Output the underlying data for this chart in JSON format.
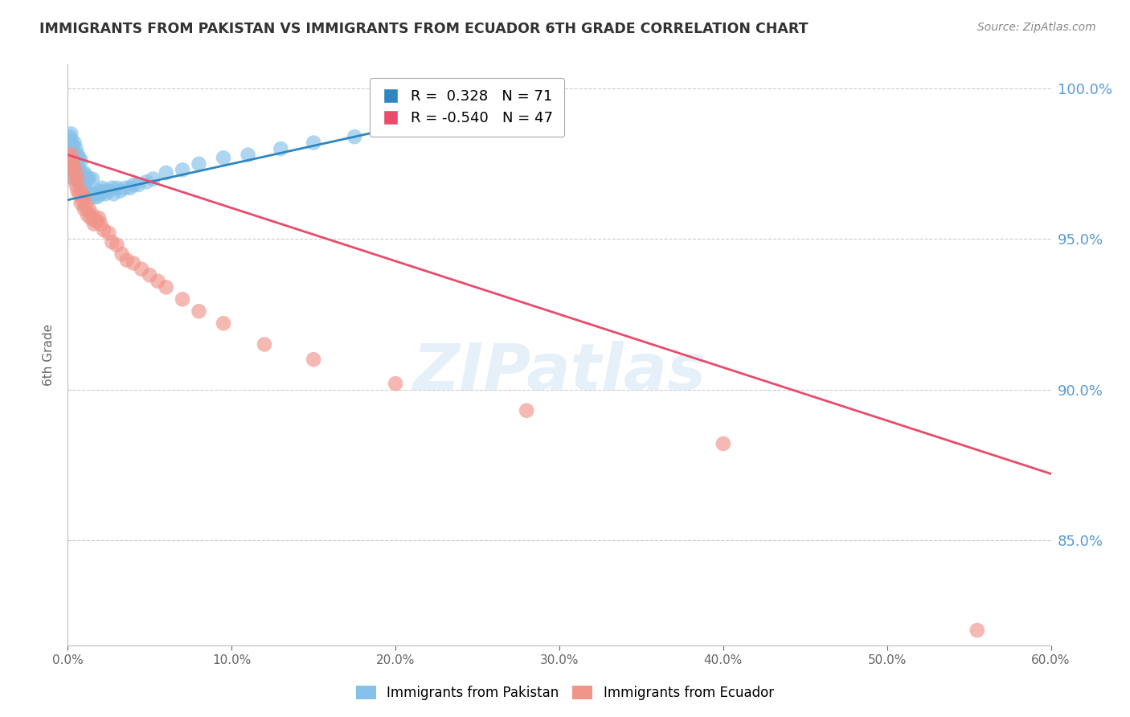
{
  "title": "IMMIGRANTS FROM PAKISTAN VS IMMIGRANTS FROM ECUADOR 6TH GRADE CORRELATION CHART",
  "source": "Source: ZipAtlas.com",
  "ylabel": "6th Grade",
  "right_yticks": [
    85.0,
    90.0,
    95.0,
    100.0
  ],
  "xlim": [
    0.0,
    0.6
  ],
  "ylim": [
    0.815,
    1.008
  ],
  "pakistan_color": "#85C1E9",
  "ecuador_color": "#F1948A",
  "pakistan_line_color": "#2E86C1",
  "ecuador_line_color": "#E74C6B",
  "legend_pakistan_label": "Immigrants from Pakistan",
  "legend_ecuador_label": "Immigrants from Ecuador",
  "R_pakistan": 0.328,
  "N_pakistan": 71,
  "R_ecuador": -0.54,
  "N_ecuador": 47,
  "pakistan_x": [
    0.001,
    0.001,
    0.001,
    0.001,
    0.001,
    0.002,
    0.002,
    0.002,
    0.002,
    0.002,
    0.003,
    0.003,
    0.003,
    0.003,
    0.004,
    0.004,
    0.004,
    0.004,
    0.005,
    0.005,
    0.005,
    0.006,
    0.006,
    0.006,
    0.007,
    0.007,
    0.007,
    0.008,
    0.008,
    0.008,
    0.009,
    0.009,
    0.01,
    0.01,
    0.011,
    0.011,
    0.012,
    0.012,
    0.013,
    0.013,
    0.014,
    0.015,
    0.015,
    0.016,
    0.017,
    0.018,
    0.019,
    0.02,
    0.021,
    0.022,
    0.023,
    0.025,
    0.027,
    0.028,
    0.03,
    0.032,
    0.035,
    0.038,
    0.04,
    0.043,
    0.048,
    0.052,
    0.06,
    0.07,
    0.08,
    0.095,
    0.11,
    0.13,
    0.15,
    0.175,
    0.25
  ],
  "pakistan_y": [
    0.976,
    0.978,
    0.98,
    0.982,
    0.984,
    0.974,
    0.977,
    0.98,
    0.983,
    0.985,
    0.972,
    0.975,
    0.978,
    0.981,
    0.97,
    0.974,
    0.978,
    0.982,
    0.972,
    0.976,
    0.98,
    0.97,
    0.974,
    0.978,
    0.969,
    0.973,
    0.977,
    0.968,
    0.972,
    0.976,
    0.967,
    0.971,
    0.967,
    0.972,
    0.966,
    0.971,
    0.965,
    0.97,
    0.965,
    0.97,
    0.965,
    0.965,
    0.97,
    0.964,
    0.965,
    0.964,
    0.966,
    0.965,
    0.967,
    0.966,
    0.965,
    0.966,
    0.967,
    0.965,
    0.967,
    0.966,
    0.967,
    0.967,
    0.968,
    0.968,
    0.969,
    0.97,
    0.972,
    0.973,
    0.975,
    0.977,
    0.978,
    0.98,
    0.982,
    0.984,
    0.987
  ],
  "ecuador_x": [
    0.001,
    0.002,
    0.002,
    0.003,
    0.003,
    0.004,
    0.004,
    0.005,
    0.005,
    0.006,
    0.006,
    0.007,
    0.008,
    0.008,
    0.009,
    0.01,
    0.01,
    0.011,
    0.012,
    0.013,
    0.014,
    0.015,
    0.016,
    0.017,
    0.018,
    0.019,
    0.02,
    0.022,
    0.025,
    0.027,
    0.03,
    0.033,
    0.036,
    0.04,
    0.045,
    0.05,
    0.055,
    0.06,
    0.07,
    0.08,
    0.095,
    0.12,
    0.15,
    0.2,
    0.28,
    0.4,
    0.555
  ],
  "ecuador_y": [
    0.978,
    0.975,
    0.978,
    0.973,
    0.976,
    0.97,
    0.974,
    0.968,
    0.972,
    0.966,
    0.97,
    0.965,
    0.962,
    0.966,
    0.963,
    0.96,
    0.964,
    0.961,
    0.958,
    0.96,
    0.957,
    0.958,
    0.955,
    0.956,
    0.956,
    0.957,
    0.955,
    0.953,
    0.952,
    0.949,
    0.948,
    0.945,
    0.943,
    0.942,
    0.94,
    0.938,
    0.936,
    0.934,
    0.93,
    0.926,
    0.922,
    0.915,
    0.91,
    0.902,
    0.893,
    0.882,
    0.82
  ],
  "pk_line_x0": 0.0,
  "pk_line_x1": 0.25,
  "pk_line_y0": 0.963,
  "pk_line_y1": 0.993,
  "ec_line_x0": 0.0,
  "ec_line_x1": 0.6,
  "ec_line_y0": 0.978,
  "ec_line_y1": 0.872,
  "watermark_text": "ZIPatlas",
  "background_color": "#FFFFFF",
  "grid_color": "#CCCCCC",
  "right_axis_color": "#5B9BD5",
  "title_color": "#333333",
  "ylabel_color": "#666666"
}
